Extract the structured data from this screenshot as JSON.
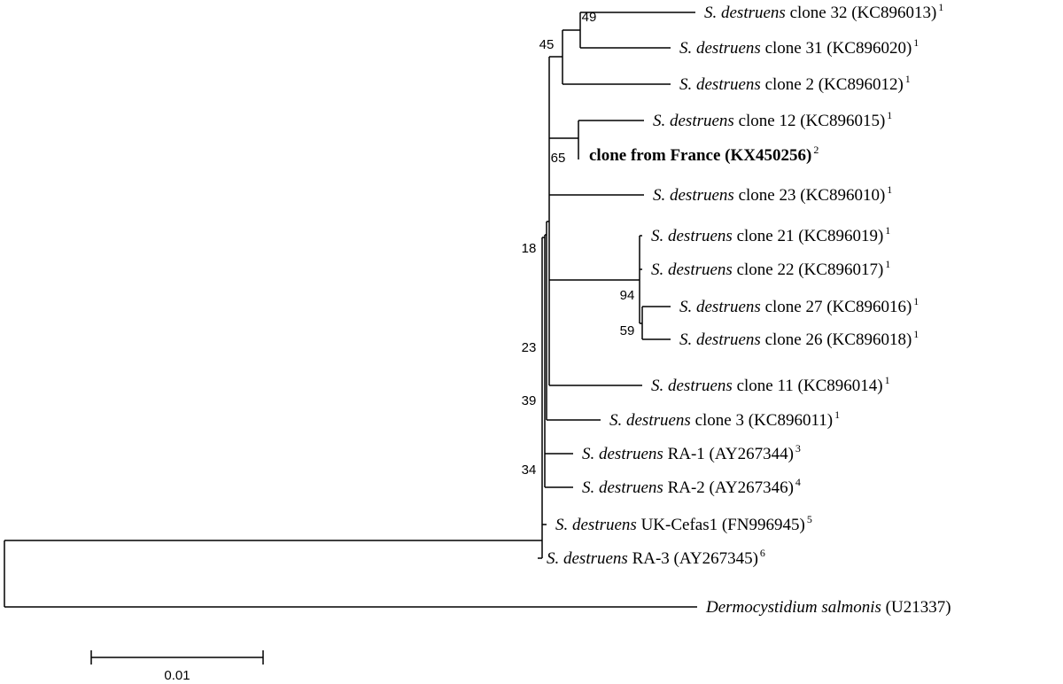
{
  "tree": {
    "leaves": [
      {
        "italic": "S. destruens",
        "text": "clone 32 (KC896013)",
        "sup": "1"
      },
      {
        "italic": "S. destruens",
        "text": "clone 31 (KC896020)",
        "sup": "1"
      },
      {
        "italic": "S. destruens",
        "text": "clone 2 (KC896012)",
        "sup": "1"
      },
      {
        "italic": "S. destruens",
        "text": "clone 12 (KC896015)",
        "sup": "1"
      },
      {
        "bold": "clone from France (KX450256)",
        "sup": "2"
      },
      {
        "italic": "S. destruens",
        "text": "clone 23 (KC896010)",
        "sup": "1"
      },
      {
        "italic": "S. destruens",
        "text": "clone 21 (KC896019)",
        "sup": "1"
      },
      {
        "italic": "S. destruens",
        "text": "clone 22 (KC896017)",
        "sup": "1"
      },
      {
        "italic": "S. destruens",
        "text": "clone 27 (KC896016)",
        "sup": "1"
      },
      {
        "italic": "S. destruens",
        "text": "clone 26 (KC896018)",
        "sup": "1"
      },
      {
        "italic": "S. destruens",
        "text": "clone 11 (KC896014)",
        "sup": "1"
      },
      {
        "italic": "S. destruens",
        "text": "clone 3 (KC896011)",
        "sup": "1"
      },
      {
        "italic": "S. destruens",
        "text": "RA-1 (AY267344)",
        "sup": "3"
      },
      {
        "italic": "S. destruens",
        "text": "RA-2 (AY267346)",
        "sup": "4"
      },
      {
        "italic": "S. destruens",
        "text": "UK-Cefas1 (FN996945)",
        "sup": "5"
      },
      {
        "italic": "S. destruens",
        "text": "RA-3 (AY267345)",
        "sup": "6"
      },
      {
        "italic": "Dermocystidium salmonis",
        "text": "(U21337)"
      }
    ],
    "bootstrap": [
      "49",
      "45",
      "65",
      "18",
      "94",
      "59",
      "23",
      "39",
      "34"
    ],
    "scale_label": "0.01"
  }
}
